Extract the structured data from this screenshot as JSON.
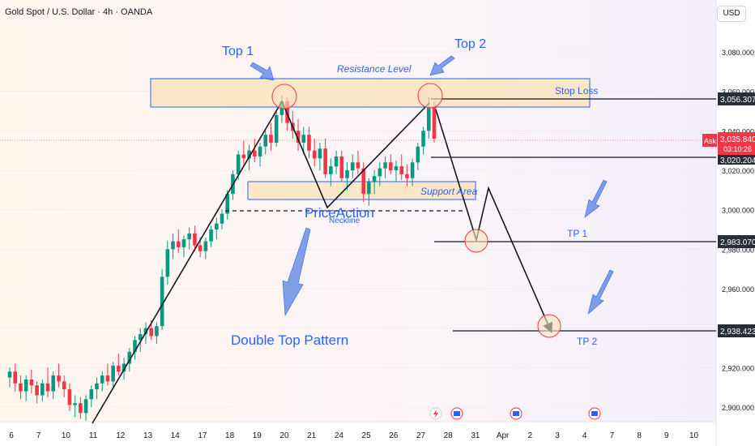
{
  "header": {
    "symbol_title": "Gold Spot / U.S. Dollar · 4h · OANDA",
    "currency_button": "USD"
  },
  "colors": {
    "up": "#089981",
    "down": "#f23645",
    "annotation_blue": "#2962ff",
    "zone_fill": "#fbe3b8",
    "zone_border": "#2962ff",
    "circle_fill": "#fde3c0",
    "circle_border": "#f23645",
    "price_tag": "#2a2e39",
    "ask_tag": "#f23645"
  },
  "chart_data": {
    "type": "candlestick",
    "symbol": "Gold Spot / U.S. Dollar",
    "interval": "4h",
    "exchange": "OANDA",
    "y_axis": {
      "ticks": [
        "3,080.000",
        "3,060.000",
        "3,040.000",
        "3,020.000",
        "3,000.000",
        "2,980.000",
        "2,960.000",
        "2,940.000",
        "2,920.000",
        "2,900.000"
      ],
      "tick_values": [
        3080,
        3060,
        3040,
        3020,
        3000,
        2980,
        2960,
        2940,
        2920,
        2900
      ],
      "range": [
        2892,
        3100
      ]
    },
    "x_axis": {
      "ticks": [
        "6",
        "7",
        "10",
        "11",
        "12",
        "13",
        "14",
        "17",
        "18",
        "19",
        "20",
        "21",
        "24",
        "25",
        "26",
        "27",
        "28",
        "31",
        "Apr",
        "2",
        "3",
        "4",
        "7",
        "8",
        "9",
        "10"
      ],
      "tick_values": [
        0,
        1,
        2,
        3,
        4,
        5,
        6,
        7,
        8,
        9,
        10,
        11,
        12,
        13,
        14,
        15,
        16,
        17,
        18,
        19,
        20,
        21,
        22,
        23,
        24,
        25
      ]
    },
    "candles_ohlc": [
      [
        2915,
        2920,
        2910,
        2918
      ],
      [
        2918,
        2922,
        2908,
        2912
      ],
      [
        2912,
        2916,
        2904,
        2908
      ],
      [
        2908,
        2916,
        2903,
        2914
      ],
      [
        2914,
        2919,
        2907,
        2911
      ],
      [
        2911,
        2913,
        2902,
        2906
      ],
      [
        2906,
        2914,
        2903,
        2912
      ],
      [
        2912,
        2920,
        2905,
        2908
      ],
      [
        2908,
        2918,
        2904,
        2916
      ],
      [
        2916,
        2922,
        2910,
        2913
      ],
      [
        2913,
        2916,
        2905,
        2909
      ],
      [
        2909,
        2912,
        2898,
        2901
      ],
      [
        2901,
        2906,
        2895,
        2902
      ],
      [
        2902,
        2905,
        2894,
        2897
      ],
      [
        2897,
        2906,
        2893,
        2904
      ],
      [
        2904,
        2911,
        2900,
        2909
      ],
      [
        2909,
        2915,
        2904,
        2912
      ],
      [
        2912,
        2918,
        2908,
        2916
      ],
      [
        2916,
        2922,
        2911,
        2913
      ],
      [
        2913,
        2923,
        2910,
        2921
      ],
      [
        2921,
        2927,
        2916,
        2918
      ],
      [
        2918,
        2925,
        2914,
        2922
      ],
      [
        2922,
        2930,
        2918,
        2928
      ],
      [
        2928,
        2936,
        2924,
        2934
      ],
      [
        2934,
        2940,
        2928,
        2937
      ],
      [
        2937,
        2943,
        2932,
        2940
      ],
      [
        2940,
        2944,
        2934,
        2936
      ],
      [
        2936,
        2943,
        2932,
        2941
      ],
      [
        2941,
        2970,
        2939,
        2966
      ],
      [
        2966,
        2984,
        2962,
        2980
      ],
      [
        2980,
        2988,
        2975,
        2984
      ],
      [
        2984,
        2990,
        2978,
        2981
      ],
      [
        2981,
        2987,
        2976,
        2985
      ],
      [
        2985,
        2991,
        2980,
        2988
      ],
      [
        2988,
        2992,
        2979,
        2982
      ],
      [
        2982,
        2986,
        2976,
        2979
      ],
      [
        2979,
        2986,
        2975,
        2984
      ],
      [
        2984,
        2992,
        2981,
        2990
      ],
      [
        2990,
        2996,
        2985,
        2993
      ],
      [
        2993,
        3000,
        2990,
        2998
      ],
      [
        2998,
        3010,
        2995,
        3008
      ],
      [
        3008,
        3020,
        3005,
        3018
      ],
      [
        3018,
        3030,
        3015,
        3028
      ],
      [
        3028,
        3035,
        3022,
        3026
      ],
      [
        3026,
        3033,
        3020,
        3030
      ],
      [
        3030,
        3036,
        3024,
        3027
      ],
      [
        3027,
        3034,
        3022,
        3032
      ],
      [
        3032,
        3040,
        3028,
        3038
      ],
      [
        3038,
        3044,
        3030,
        3034
      ],
      [
        3034,
        3050,
        3032,
        3048
      ],
      [
        3048,
        3058,
        3044,
        3055
      ],
      [
        3055,
        3057,
        3040,
        3044
      ],
      [
        3044,
        3050,
        3036,
        3040
      ],
      [
        3040,
        3046,
        3030,
        3034
      ],
      [
        3034,
        3042,
        3028,
        3038
      ],
      [
        3038,
        3042,
        3026,
        3030
      ],
      [
        3030,
        3036,
        3022,
        3026
      ],
      [
        3026,
        3034,
        3020,
        3031
      ],
      [
        3031,
        3036,
        3016,
        3018
      ],
      [
        3018,
        3026,
        3012,
        3022
      ],
      [
        3022,
        3030,
        3018,
        3027
      ],
      [
        3027,
        3030,
        3014,
        3016
      ],
      [
        3016,
        3024,
        3010,
        3020
      ],
      [
        3020,
        3028,
        3016,
        3024
      ],
      [
        3024,
        3030,
        3018,
        3021
      ],
      [
        3021,
        3024,
        3004,
        3008
      ],
      [
        3008,
        3016,
        3002,
        3014
      ],
      [
        3014,
        3020,
        3008,
        3017
      ],
      [
        3017,
        3024,
        3012,
        3021
      ],
      [
        3021,
        3027,
        3016,
        3024
      ],
      [
        3024,
        3028,
        3018,
        3020
      ],
      [
        3020,
        3025,
        3014,
        3022
      ],
      [
        3022,
        3028,
        3015,
        3018
      ],
      [
        3018,
        3023,
        3012,
        3016
      ],
      [
        3016,
        3026,
        3012,
        3024
      ],
      [
        3024,
        3034,
        3020,
        3032
      ],
      [
        3032,
        3042,
        3028,
        3040
      ],
      [
        3040,
        3057,
        3036,
        3052
      ],
      [
        3052,
        3055,
        3034,
        3036
      ]
    ],
    "annotations": {
      "top1_label": "Top 1",
      "top2_label": "Top 2",
      "resistance_label": "Resistance Level",
      "stop_loss_label": "Stop Loss",
      "support_label": "Support Area",
      "neckline_label": "Neckline",
      "watermark": "PriceAction",
      "pattern_label": "Double Top Pattern",
      "tp1_label": "TP 1",
      "tp2_label": "TP 2"
    },
    "levels": {
      "stop_loss": 3056.307,
      "entry": 3020.204,
      "tp1": 2983.07,
      "tp2": 2938.423,
      "ask": 3035.84,
      "neckline": 3000
    },
    "price_tags": {
      "stop_loss": "3,056.307",
      "entry": "3,020.204",
      "tp1": "2,983.070",
      "tp2": "2,938.423",
      "ask_label": "Ask",
      "ask_price": "3,035.840",
      "countdown": "03:10:26"
    }
  }
}
